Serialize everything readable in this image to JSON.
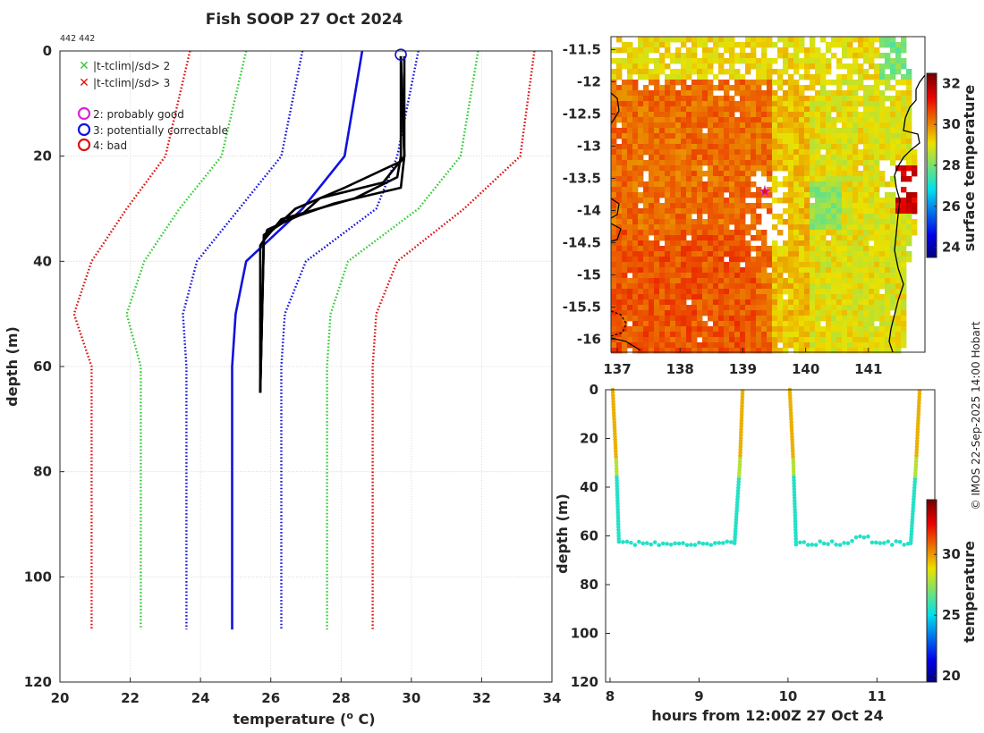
{
  "header": {
    "title": "Fish SOOP 27 Oct 2024",
    "id_text": "442 442"
  },
  "footer": {
    "credit": "© IMOS 22-Sep-2025 14:00 Hobart"
  },
  "legend": {
    "flags": [
      {
        "label": "|t-tclim|/sd> 2",
        "color": "#33cc33"
      },
      {
        "label": "|t-tclim|/sd> 3",
        "color": "#dd1111"
      }
    ],
    "quality": [
      {
        "label": "2: probably good",
        "color": "#dd22dd"
      },
      {
        "label": "3: potentially correctable",
        "color": "#1111dd"
      },
      {
        "label": "4: bad",
        "color": "#dd1111"
      }
    ]
  },
  "chart_data": [
    {
      "type": "line",
      "name": "profile",
      "xlabel": "temperature (",
      "xlabel_sup": "o",
      "xlabel_end": " C)",
      "ylabel": "depth (m)",
      "xlim": [
        20,
        34
      ],
      "ylim": [
        0,
        120
      ],
      "xticks": [
        "20",
        "22",
        "24",
        "26",
        "28",
        "30",
        "32",
        "34"
      ],
      "yticks": [
        "0",
        "20",
        "40",
        "60",
        "80",
        "100",
        "120"
      ],
      "climatology": {
        "depth": [
          0,
          20,
          30,
          40,
          50,
          60,
          110
        ],
        "values": [
          28.6,
          28.1,
          26.9,
          25.3,
          25.0,
          24.9,
          24.9
        ],
        "color": "#1111dd"
      },
      "envelopes": [
        {
          "name": "+1sd",
          "color": "#1111dd",
          "depth": [
            0,
            20,
            30,
            40,
            50,
            60,
            110
          ],
          "values": [
            30.2,
            29.6,
            29.0,
            27.0,
            26.4,
            26.3,
            26.3
          ]
        },
        {
          "name": "-1sd",
          "color": "#1111dd",
          "depth": [
            0,
            20,
            30,
            40,
            50,
            60,
            110
          ],
          "values": [
            26.9,
            26.3,
            25.1,
            23.9,
            23.5,
            23.6,
            23.6
          ]
        },
        {
          "name": "+2sd",
          "color": "#33cc33",
          "depth": [
            0,
            20,
            30,
            40,
            50,
            60,
            110
          ],
          "values": [
            31.9,
            31.4,
            30.2,
            28.2,
            27.7,
            27.6,
            27.6
          ]
        },
        {
          "name": "-2sd",
          "color": "#33cc33",
          "depth": [
            0,
            20,
            30,
            40,
            50,
            60,
            110
          ],
          "values": [
            25.3,
            24.6,
            23.4,
            22.4,
            21.9,
            22.3,
            22.3
          ]
        },
        {
          "name": "+3sd",
          "color": "#dd1111",
          "depth": [
            0,
            20,
            30,
            40,
            50,
            60,
            110
          ],
          "values": [
            33.5,
            33.1,
            31.5,
            29.6,
            29.0,
            28.9,
            28.9
          ]
        },
        {
          "name": "-3sd",
          "color": "#dd1111",
          "depth": [
            0,
            20,
            30,
            40,
            50,
            60,
            110
          ],
          "values": [
            23.7,
            23.0,
            21.9,
            20.9,
            20.4,
            20.9,
            20.9
          ]
        }
      ],
      "profiles": [
        {
          "name": "cast-1",
          "depth": [
            1,
            20,
            21,
            26,
            30,
            35,
            37,
            65
          ],
          "values": [
            29.7,
            29.8,
            29.7,
            28.1,
            26.7,
            25.9,
            25.7,
            25.7
          ]
        },
        {
          "name": "cast-2",
          "depth": [
            1,
            20,
            24,
            28,
            32,
            36,
            65
          ],
          "values": [
            29.7,
            29.7,
            29.6,
            28.4,
            26.3,
            25.8,
            25.7
          ]
        },
        {
          "name": "cast-3",
          "depth": [
            1,
            20,
            25,
            28,
            31,
            34,
            36,
            65
          ],
          "values": [
            29.8,
            29.8,
            29.2,
            27.4,
            26.9,
            25.9,
            25.8,
            25.7
          ]
        },
        {
          "name": "cast-4",
          "depth": [
            1,
            20,
            26,
            29,
            32,
            35,
            65
          ],
          "values": [
            29.7,
            29.8,
            29.7,
            27.8,
            26.5,
            25.8,
            25.7
          ]
        }
      ],
      "marker": {
        "x": 29.7,
        "depth": 0.7,
        "color": "#1111dd"
      }
    },
    {
      "type": "heatmap",
      "name": "map",
      "xticks": [
        "137",
        "138",
        "139",
        "140",
        "141"
      ],
      "yticks": [
        "-11.5",
        "-12",
        "-12.5",
        "-13",
        "-13.5",
        "-14",
        "-14.5",
        "-15",
        "-15.5",
        "-16"
      ],
      "xlim": [
        136.9,
        141.9
      ],
      "ylim": [
        -16.2,
        -11.3
      ],
      "star": {
        "lon": 139.35,
        "lat": -13.7
      },
      "colorbar": {
        "label": "surface temperature",
        "ticks": [
          "24",
          "26",
          "28",
          "30",
          "32"
        ],
        "range": [
          23.5,
          32.5
        ]
      }
    },
    {
      "type": "scatter",
      "name": "timeseries",
      "xlabel": "hours from 12:00Z 27 Oct 24",
      "ylabel": "depth (m)",
      "xlim": [
        7.95,
        11.65
      ],
      "ylim": [
        0,
        120
      ],
      "xticks": [
        "8",
        "9",
        "10",
        "11"
      ],
      "yticks": [
        "0",
        "20",
        "40",
        "60",
        "80",
        "100",
        "120"
      ],
      "casts": [
        {
          "t": [
            8.03,
            8.07,
            8.1,
            9.4,
            9.46,
            9.49
          ],
          "depth": [
            1,
            30,
            60,
            60,
            30,
            1
          ],
          "bottom": 63
        },
        {
          "t": [
            10.02,
            10.06,
            10.09,
            11.38,
            11.44,
            11.48
          ],
          "depth": [
            1,
            30,
            60,
            60,
            30,
            1
          ],
          "bottom": 63
        }
      ],
      "colorbar": {
        "label": "temperature",
        "ticks": [
          "20",
          "25",
          "30"
        ],
        "range": [
          19.5,
          34.5
        ]
      }
    }
  ]
}
